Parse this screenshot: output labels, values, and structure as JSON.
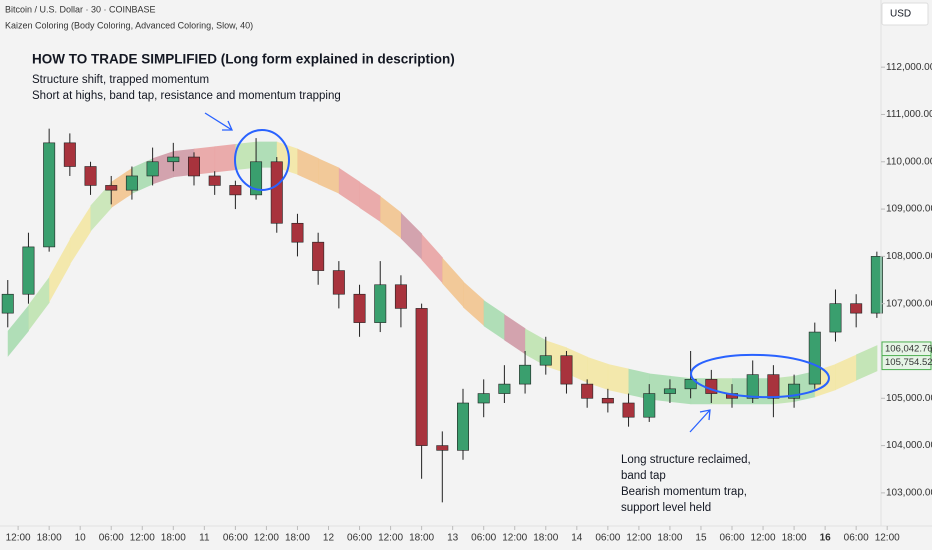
{
  "chart_data": {
    "type": "candlestick",
    "symbol": "Bitcoin / U.S. Dollar · 30 · COINBASE",
    "indicator": "Kaizen Coloring (Body Coloring, Advanced Coloring, Slow, 40)",
    "currency": "USD",
    "title": "HOW TO TRADE SIMPLIFIED (Long form explained in description)",
    "annotations": [
      {
        "lines": [
          "Structure shift, trapped momentum",
          "Short at highs, band tap, resistance and momentum trapping"
        ]
      },
      {
        "lines": [
          "Long structure reclaimed,",
          "band tap",
          "Bearish momentum trap,",
          "support level held"
        ]
      }
    ],
    "x": [
      -2,
      2,
      6,
      10,
      14,
      18,
      22,
      26,
      30,
      34,
      38,
      42,
      46,
      50,
      54,
      58,
      62,
      66,
      70,
      74,
      78,
      82,
      86,
      90,
      94,
      98,
      102,
      106,
      110,
      114,
      118,
      122,
      126,
      130,
      134,
      138,
      142,
      146,
      150,
      154,
      158,
      162,
      166
    ],
    "open": [
      106800,
      107200,
      108200,
      110400,
      109900,
      109500,
      109400,
      109700,
      110000,
      110100,
      109700,
      109500,
      109300,
      110000,
      108700,
      108300,
      107700,
      107200,
      106600,
      107400,
      106900,
      104000,
      103900,
      104900,
      105100,
      105300,
      105700,
      105900,
      105300,
      105000,
      104900,
      104600,
      105100,
      105200,
      105400,
      105100,
      105000,
      105500,
      105000,
      105300,
      106400,
      107000,
      106800
    ],
    "high": [
      107500,
      108500,
      110700,
      110600,
      110000,
      109700,
      109900,
      110300,
      110400,
      110200,
      109800,
      109600,
      110500,
      110100,
      108900,
      108500,
      107900,
      107400,
      107900,
      107600,
      107000,
      104300,
      105200,
      105400,
      105700,
      106000,
      106300,
      106000,
      105400,
      105200,
      105100,
      105300,
      105400,
      106000,
      105600,
      105300,
      105800,
      105700,
      105500,
      106600,
      107300,
      107200,
      108100
    ],
    "low": [
      106500,
      107000,
      108100,
      109700,
      109300,
      109100,
      109200,
      109500,
      109800,
      109500,
      109300,
      109000,
      109200,
      108500,
      108000,
      107400,
      106900,
      106300,
      106400,
      106500,
      103300,
      102800,
      103700,
      104600,
      104900,
      105100,
      105500,
      105100,
      104800,
      104700,
      104400,
      104500,
      104900,
      105000,
      104900,
      104800,
      104900,
      104600,
      104800,
      105200,
      106200,
      106500,
      106700
    ],
    "close": [
      107200,
      108200,
      110400,
      109900,
      109500,
      109400,
      109700,
      110000,
      110100,
      109700,
      109500,
      109300,
      110000,
      108700,
      108300,
      107700,
      107200,
      106600,
      107400,
      106900,
      104000,
      103900,
      104900,
      105100,
      105300,
      105700,
      105900,
      105300,
      105000,
      104900,
      104600,
      105100,
      105200,
      105400,
      105100,
      105000,
      105500,
      105000,
      105300,
      106400,
      107000,
      106800,
      108000
    ],
    "up_color": "#3a9f6e",
    "down_color": "#a8333d",
    "band": {
      "values": [
        106150,
        106700,
        107300,
        108100,
        108800,
        109300,
        109600,
        109800,
        109950,
        110000,
        110050,
        110100,
        110150,
        110150,
        110000,
        109800,
        109600,
        109300,
        109000,
        108650,
        108200,
        107700,
        107200,
        106800,
        106500,
        106200,
        105950,
        105800,
        105600,
        105450,
        105350,
        105250,
        105200,
        105150,
        105150,
        105150,
        105150,
        105150,
        105200,
        105300,
        105450,
        105650,
        105850
      ],
      "colors": [
        "#a9dcb0",
        "#bfe3b0",
        "#f3e7a4",
        "#f3e7a4",
        "#c8e6b5",
        "#f2c48f",
        "#a9dcb0",
        "#cf9aa6",
        "#cf9aa6",
        "#e9a3a3",
        "#e9a3a3",
        "#bfe3b0",
        "#a9dcb0",
        "#f3e7a4",
        "#f2c48f",
        "#f2c48f",
        "#e9a3a3",
        "#e9a3a3",
        "#f2c48f",
        "#cf9aa6",
        "#e9a3a3",
        "#f2c48f",
        "#f2c48f",
        "#a9dcb0",
        "#cf9aa6",
        "#bfe3b0",
        "#f3e7a4",
        "#f3e7a4",
        "#f3e7a4",
        "#f3e7a4",
        "#a9dcb0",
        "#a9dcb0",
        "#a9dcb0",
        "#a9dcb0",
        "#bfe3b0",
        "#a9dcb0",
        "#a9dcb0",
        "#bfe3b0",
        "#a9dcb0",
        "#f3e7a4",
        "#f3e7a4",
        "#bfe3b0",
        "#bfe3b0"
      ]
    },
    "price_labels": {
      "values": [
        106042.76,
        105754.52
      ],
      "value_labels": [
        "106,042.76",
        "105,754.52"
      ]
    },
    "xlim": [
      -3.5,
      166.8
    ],
    "xticks": [
      {
        "value": 0,
        "label": "12:00"
      },
      {
        "value": 6,
        "label": "18:00"
      },
      {
        "value": 12,
        "label": "10"
      },
      {
        "value": 18,
        "label": "06:00"
      },
      {
        "value": 24,
        "label": "12:00"
      },
      {
        "value": 30,
        "label": "18:00"
      },
      {
        "value": 36,
        "label": "11"
      },
      {
        "value": 42,
        "label": "06:00"
      },
      {
        "value": 48,
        "label": "12:00"
      },
      {
        "value": 54,
        "label": "18:00"
      },
      {
        "value": 60,
        "label": "12"
      },
      {
        "value": 66,
        "label": "06:00"
      },
      {
        "value": 72,
        "label": "12:00"
      },
      {
        "value": 78,
        "label": "18:00"
      },
      {
        "value": 84,
        "label": "13"
      },
      {
        "value": 90,
        "label": "06:00"
      },
      {
        "value": 96,
        "label": "12:00"
      },
      {
        "value": 102,
        "label": "18:00"
      },
      {
        "value": 108,
        "label": "14"
      },
      {
        "value": 114,
        "label": "06:00"
      },
      {
        "value": 120,
        "label": "12:00"
      },
      {
        "value": 126,
        "label": "18:00"
      },
      {
        "value": 132,
        "label": "15"
      },
      {
        "value": 138,
        "label": "06:00"
      },
      {
        "value": 144,
        "label": "12:00"
      },
      {
        "value": 150,
        "label": "18:00"
      },
      {
        "value": 156,
        "label": "16"
      },
      {
        "value": 162,
        "label": "06:00"
      },
      {
        "value": 168,
        "label": "12:00"
      }
    ],
    "bold_xtick": 26,
    "ylim": [
      102300,
      113420
    ],
    "yticks": [
      {
        "value": 103000,
        "label": "103,000.00"
      },
      {
        "value": 104000,
        "label": "104,000.00"
      },
      {
        "value": 105000,
        "label": "105,000.00"
      },
      {
        "value": 106000,
        "label": "106,000.00"
      },
      {
        "value": 107000,
        "label": "107,000.00"
      },
      {
        "value": 108000,
        "label": "108,000.00"
      },
      {
        "value": 109000,
        "label": "109,000.00"
      },
      {
        "value": 110000,
        "label": "110,000.00"
      },
      {
        "value": 111000,
        "label": "111,000.00"
      },
      {
        "value": 112000,
        "label": "112,000.00"
      }
    ]
  }
}
